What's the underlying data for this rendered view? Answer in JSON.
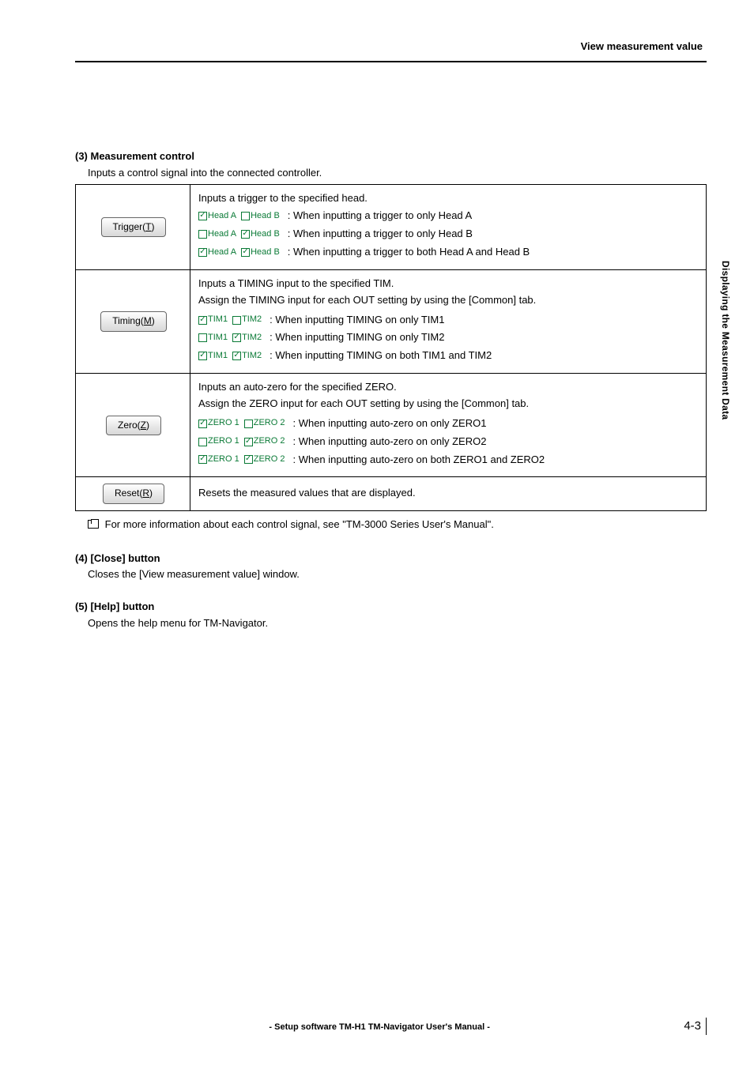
{
  "header": {
    "title": "View measurement value"
  },
  "side_tab": "Displaying the Measurement Data",
  "section3": {
    "heading": "(3) Measurement control",
    "desc": "Inputs a control signal into the connected controller.",
    "rows": [
      {
        "btn": {
          "prefix": "Trigger(",
          "ul": "T",
          "suffix": ")"
        },
        "intro": "Inputs a trigger to the specified head.",
        "lines": [
          {
            "cb": [
              {
                "label": "Head A",
                "checked": true
              },
              {
                "label": "Head B",
                "checked": false
              }
            ],
            "text": ": When inputting a trigger to only Head A"
          },
          {
            "cb": [
              {
                "label": "Head A",
                "checked": false
              },
              {
                "label": "Head B",
                "checked": true
              }
            ],
            "text": ": When inputting a trigger to only Head B"
          },
          {
            "cb": [
              {
                "label": "Head A",
                "checked": true
              },
              {
                "label": "Head B",
                "checked": true
              }
            ],
            "text": ": When inputting a trigger to both Head A and Head B"
          }
        ]
      },
      {
        "btn": {
          "prefix": "Timing(",
          "ul": "M",
          "suffix": ")"
        },
        "intro": "Inputs a TIMING input to the specified TIM.",
        "intro2": "Assign the TIMING input for each OUT setting by using the [Common] tab.",
        "lines": [
          {
            "cb": [
              {
                "label": "TIM1",
                "checked": true
              },
              {
                "label": "TIM2",
                "checked": false
              }
            ],
            "text": ": When inputting TIMING on only TIM1"
          },
          {
            "cb": [
              {
                "label": "TIM1",
                "checked": false
              },
              {
                "label": "TIM2",
                "checked": true
              }
            ],
            "text": ": When inputting TIMING on only TIM2"
          },
          {
            "cb": [
              {
                "label": "TIM1",
                "checked": true
              },
              {
                "label": "TIM2",
                "checked": true
              }
            ],
            "text": ": When inputting TIMING on both TIM1 and TIM2"
          }
        ]
      },
      {
        "btn": {
          "prefix": "Zero(",
          "ul": "Z",
          "suffix": ")"
        },
        "intro": "Inputs an auto-zero for the specified ZERO.",
        "intro2": "Assign the ZERO input for each OUT setting by using the [Common] tab.",
        "lines": [
          {
            "cb": [
              {
                "label": "ZERO 1",
                "checked": true
              },
              {
                "label": "ZERO 2",
                "checked": false
              }
            ],
            "text": ": When inputting auto-zero on only ZERO1"
          },
          {
            "cb": [
              {
                "label": "ZERO 1",
                "checked": false
              },
              {
                "label": "ZERO 2",
                "checked": true
              }
            ],
            "text": ": When inputting auto-zero on only ZERO2"
          },
          {
            "cb": [
              {
                "label": "ZERO 1",
                "checked": true
              },
              {
                "label": "ZERO 2",
                "checked": true
              }
            ],
            "text": ": When inputting auto-zero on both ZERO1 and ZERO2"
          }
        ]
      },
      {
        "btn": {
          "prefix": "Reset(",
          "ul": "R",
          "suffix": ")"
        },
        "intro": "Resets the measured values that are displayed."
      }
    ],
    "note": "For more information about each control signal, see \"TM-3000 Series User's Manual\"."
  },
  "section4": {
    "heading": "(4) [Close] button",
    "desc": "Closes the [View measurement value] window."
  },
  "section5": {
    "heading": "(5) [Help] button",
    "desc": "Opens the help menu for TM-Navigator."
  },
  "footer": {
    "center": "- Setup software TM-H1 TM-Navigator User's Manual -",
    "page": "4-3"
  }
}
